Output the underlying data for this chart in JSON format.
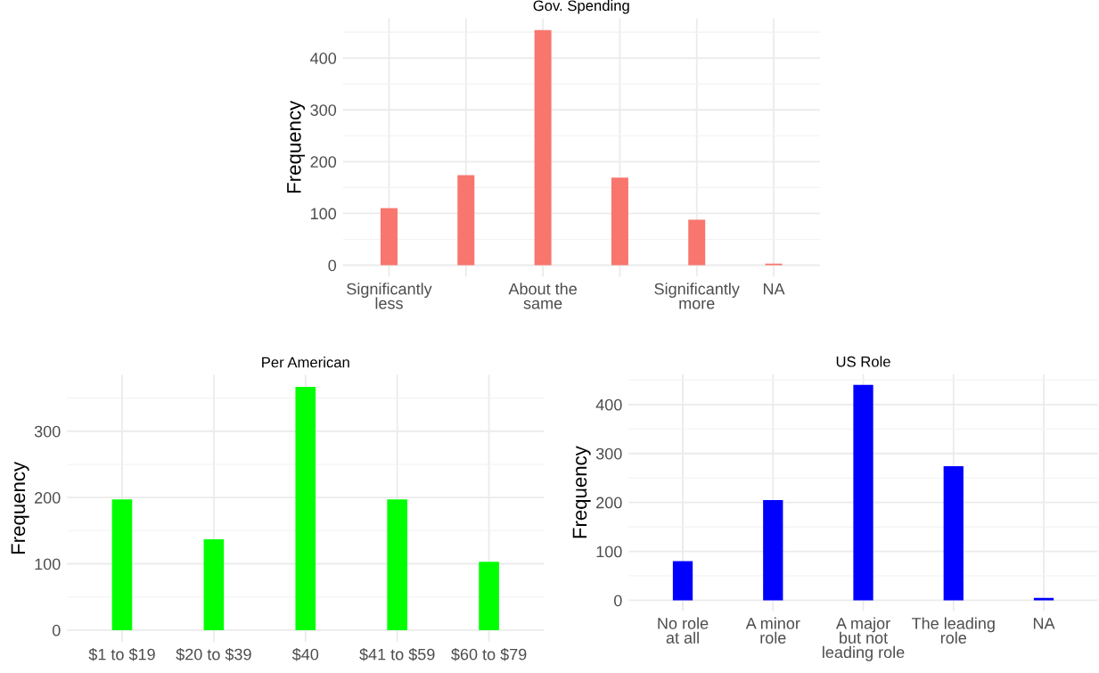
{
  "chart_data": [
    {
      "type": "bar",
      "title": "Gov. Spending",
      "ylabel": "Frequency",
      "categories": [
        "Significantly\nless",
        null,
        "About the\nsame",
        null,
        "Significantly\nmore",
        "NA"
      ],
      "values": [
        110,
        174,
        454,
        169,
        88,
        3
      ],
      "color": "#f8766d",
      "ylim": [
        -22,
        477
      ],
      "yticks": [
        0,
        100,
        200,
        300,
        400
      ],
      "grid": true
    },
    {
      "type": "bar",
      "title": "Per American",
      "ylabel": "Frequency",
      "categories": [
        "$1 to $19",
        "$20 to $39",
        "$40",
        "$41 to $59",
        "$60 to $79"
      ],
      "values": [
        197,
        137,
        367,
        197,
        103
      ],
      "color": "#00ff00",
      "ylim": [
        -18,
        385
      ],
      "yticks": [
        0,
        100,
        200,
        300
      ],
      "grid": true
    },
    {
      "type": "bar",
      "title": "US Role",
      "ylabel": "Frequency",
      "categories": [
        "No role\nat all",
        "A minor\nrole",
        "A major\nbut not\nleading role",
        "The leading\nrole",
        "NA"
      ],
      "values": [
        80,
        205,
        440,
        274,
        5
      ],
      "color": "#0000ff",
      "ylim": [
        -22,
        462
      ],
      "yticks": [
        0,
        100,
        200,
        300,
        400
      ],
      "grid": true
    }
  ]
}
